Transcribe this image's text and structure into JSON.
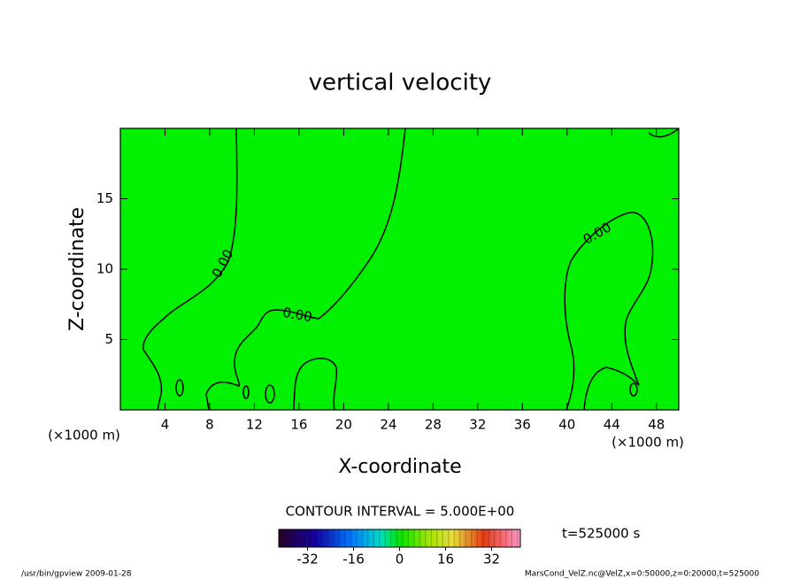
{
  "chart_data": {
    "type": "contour",
    "title": "vertical velocity",
    "x_label": "X-coordinate",
    "y_label": "Z-coordinate",
    "x_unit_labels": [
      "(×1000 m)",
      "(×1000 m)"
    ],
    "xlim": [
      0,
      50
    ],
    "xticks": [
      4,
      8,
      12,
      16,
      20,
      24,
      28,
      32,
      36,
      40,
      44,
      48
    ],
    "ylim": [
      0,
      20
    ],
    "yticks": [
      5,
      10,
      15
    ],
    "contour_labels": [
      "0.00",
      "0.00",
      "0.00"
    ],
    "contour_interval": "CONTOUR INTERVAL = 5.000E+00",
    "time_label": "t=525000 s",
    "colorbar": {
      "clim": [
        -42,
        42
      ],
      "ticks": [
        -32,
        -16,
        0,
        16,
        32
      ]
    },
    "footer_left": "/usr/bin/gpview   2009-01-28",
    "footer_right": "MarsCond_VelZ.nc@VelZ,x=0:50000,z=0:20000,t=525000"
  }
}
